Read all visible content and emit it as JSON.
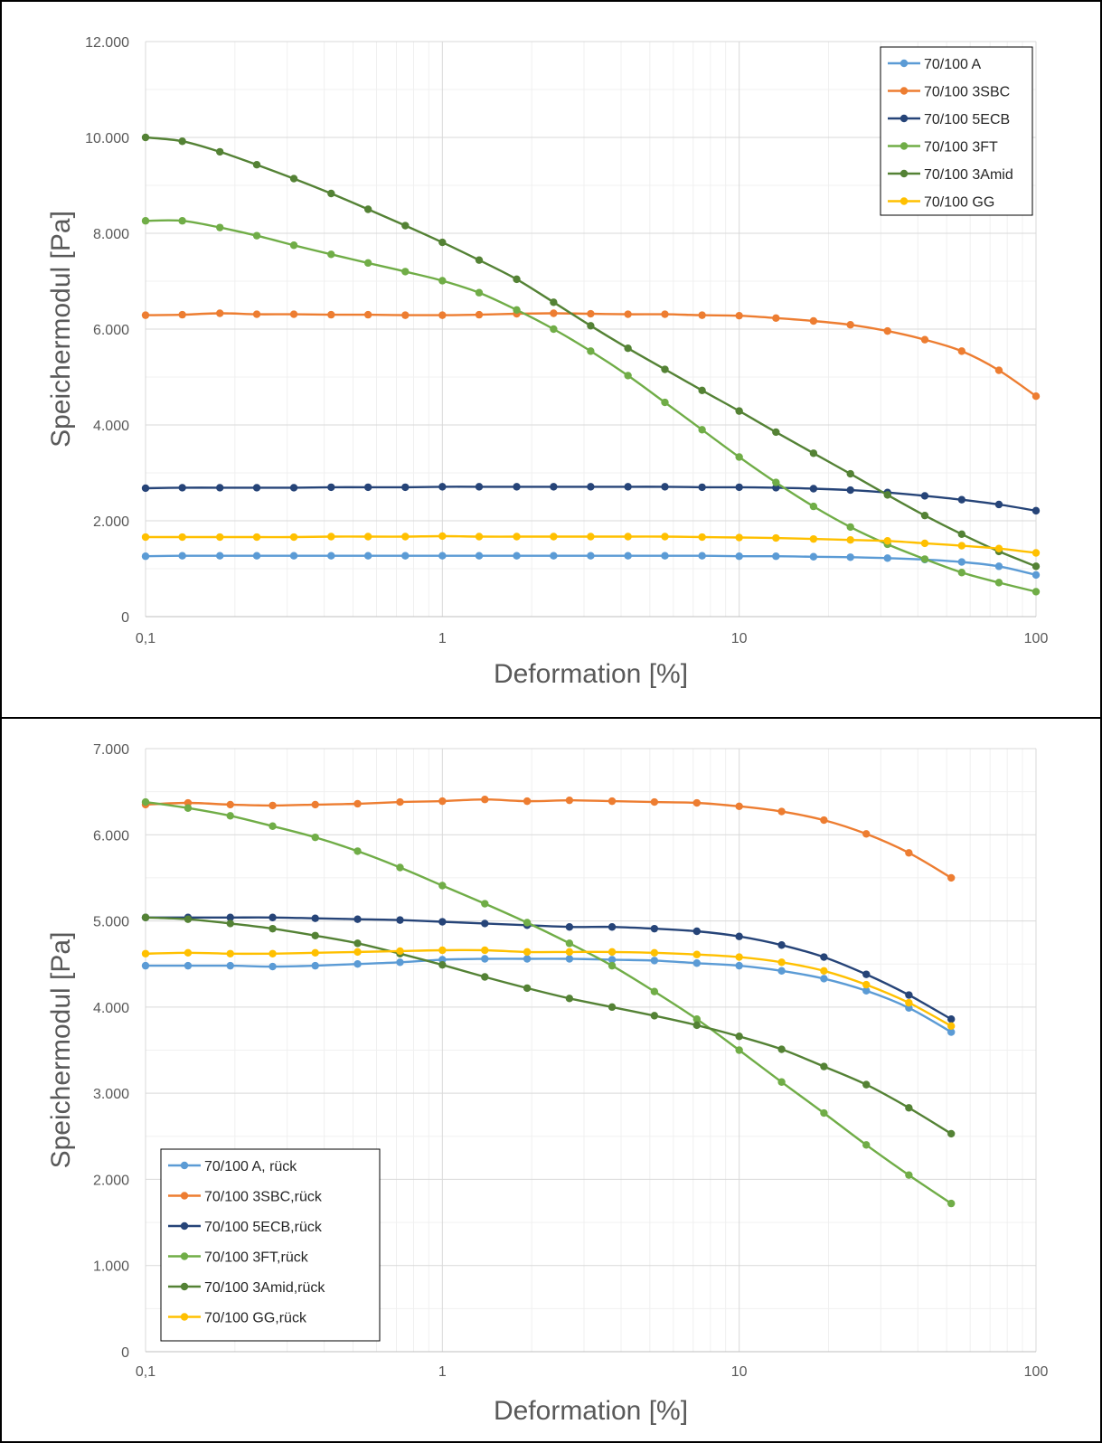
{
  "chart_data": [
    {
      "type": "line",
      "xscale": "log",
      "xlabel": "Deformation [%]",
      "ylabel": "Speichermodul [Pa]",
      "xlim": [
        0.1,
        100
      ],
      "ylim": [
        0,
        12000
      ],
      "x_ticks": [
        "0,1",
        "1",
        "10",
        "100"
      ],
      "y_ticks": [
        "0",
        "2.000",
        "4.000",
        "6.000",
        "8.000",
        "10.000",
        "12.000"
      ],
      "grid": true,
      "legend_position": "top-right",
      "x": [
        0.1,
        0.133,
        0.178,
        0.237,
        0.316,
        0.422,
        0.562,
        0.75,
        1,
        1.33,
        1.78,
        2.37,
        3.16,
        4.22,
        5.62,
        7.5,
        10,
        13.3,
        17.8,
        23.7,
        31.6,
        42.2,
        56.2,
        75,
        100
      ],
      "series": [
        {
          "name": "70/100 A",
          "color": "#5b9bd5",
          "values": [
            1260,
            1270,
            1270,
            1270,
            1270,
            1270,
            1270,
            1270,
            1270,
            1270,
            1270,
            1270,
            1270,
            1270,
            1270,
            1270,
            1260,
            1260,
            1250,
            1240,
            1220,
            1190,
            1140,
            1050,
            870
          ]
        },
        {
          "name": "70/100 3SBC",
          "color": "#ed7d31",
          "values": [
            6290,
            6300,
            6330,
            6310,
            6310,
            6300,
            6300,
            6290,
            6290,
            6300,
            6320,
            6330,
            6320,
            6310,
            6310,
            6290,
            6280,
            6230,
            6170,
            6090,
            5960,
            5780,
            5540,
            5140,
            4600
          ]
        },
        {
          "name": "70/100 5ECB",
          "color": "#264478",
          "values": [
            2680,
            2690,
            2690,
            2690,
            2690,
            2700,
            2700,
            2700,
            2710,
            2710,
            2710,
            2710,
            2710,
            2710,
            2710,
            2700,
            2700,
            2690,
            2670,
            2640,
            2590,
            2520,
            2440,
            2340,
            2210
          ]
        },
        {
          "name": "70/100 3FT",
          "color": "#70ad47",
          "values": [
            8260,
            8260,
            8120,
            7950,
            7750,
            7560,
            7380,
            7200,
            7010,
            6760,
            6400,
            6000,
            5540,
            5030,
            4470,
            3900,
            3330,
            2800,
            2300,
            1870,
            1510,
            1200,
            920,
            710,
            520
          ]
        },
        {
          "name": "70/100 3Amid",
          "color": "#548235",
          "values": [
            10000,
            9920,
            9700,
            9430,
            9140,
            8830,
            8500,
            8160,
            7810,
            7440,
            7040,
            6560,
            6070,
            5600,
            5160,
            4720,
            4290,
            3850,
            3410,
            2980,
            2540,
            2110,
            1720,
            1360,
            1050
          ]
        },
        {
          "name": "70/100 GG",
          "color": "#ffc000",
          "values": [
            1660,
            1660,
            1660,
            1660,
            1660,
            1670,
            1670,
            1670,
            1680,
            1670,
            1670,
            1670,
            1670,
            1670,
            1670,
            1660,
            1650,
            1640,
            1620,
            1600,
            1580,
            1530,
            1480,
            1420,
            1330
          ]
        }
      ]
    },
    {
      "type": "line",
      "xscale": "log",
      "xlabel": "Deformation [%]",
      "ylabel": "Speichermodul [Pa]",
      "xlim": [
        0.1,
        100
      ],
      "ylim": [
        0,
        7000
      ],
      "x_ticks": [
        "0,1",
        "1",
        "10",
        "100"
      ],
      "y_ticks": [
        "0",
        "1.000",
        "2.000",
        "3.000",
        "4.000",
        "5.000",
        "6.000",
        "7.000"
      ],
      "grid": true,
      "legend_position": "bottom-left",
      "x": [
        0.1,
        0.139,
        0.193,
        0.268,
        0.373,
        0.518,
        0.72,
        1,
        1.39,
        1.93,
        2.68,
        3.73,
        5.18,
        7.2,
        10,
        13.9,
        19.3,
        26.8,
        37.3,
        51.8
      ],
      "series": [
        {
          "name": "70/100 A, rück",
          "color": "#5b9bd5",
          "values": [
            4480,
            4480,
            4480,
            4470,
            4480,
            4500,
            4520,
            4550,
            4560,
            4560,
            4560,
            4550,
            4540,
            4510,
            4480,
            4420,
            4330,
            4190,
            3990,
            3710
          ]
        },
        {
          "name": "70/100 3SBC,rück",
          "color": "#ed7d31",
          "values": [
            6350,
            6370,
            6350,
            6340,
            6350,
            6360,
            6380,
            6390,
            6410,
            6390,
            6400,
            6390,
            6380,
            6370,
            6330,
            6270,
            6170,
            6010,
            5790,
            5500
          ]
        },
        {
          "name": "70/100 5ECB,rück",
          "color": "#264478",
          "values": [
            5040,
            5040,
            5040,
            5040,
            5030,
            5020,
            5010,
            4990,
            4970,
            4950,
            4930,
            4930,
            4910,
            4880,
            4820,
            4720,
            4580,
            4380,
            4140,
            3860
          ]
        },
        {
          "name": "70/100 3FT,rück",
          "color": "#70ad47",
          "values": [
            6380,
            6310,
            6220,
            6100,
            5970,
            5810,
            5620,
            5410,
            5200,
            4980,
            4740,
            4480,
            4180,
            3860,
            3500,
            3130,
            2770,
            2400,
            2050,
            1720
          ]
        },
        {
          "name": "70/100 3Amid,rück",
          "color": "#548235",
          "values": [
            5040,
            5020,
            4970,
            4910,
            4830,
            4740,
            4620,
            4490,
            4350,
            4220,
            4100,
            4000,
            3900,
            3790,
            3660,
            3510,
            3310,
            3100,
            2830,
            2530
          ]
        },
        {
          "name": "70/100 GG,rück",
          "color": "#ffc000",
          "values": [
            4620,
            4630,
            4620,
            4620,
            4630,
            4640,
            4650,
            4660,
            4660,
            4640,
            4640,
            4640,
            4630,
            4610,
            4580,
            4520,
            4420,
            4260,
            4050,
            3780
          ]
        }
      ]
    }
  ]
}
